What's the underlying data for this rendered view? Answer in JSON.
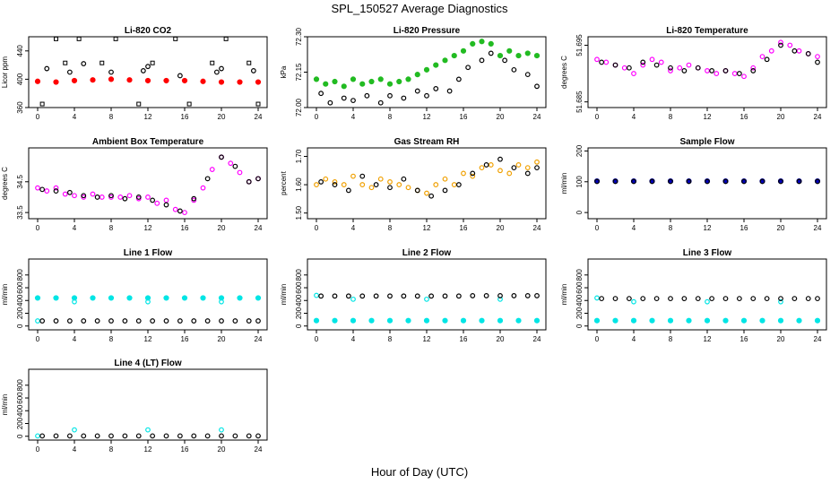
{
  "figure": {
    "title": "SPL_150527  Average Diagnostics",
    "xlabel": "Hour of Day (UTC)"
  },
  "chart_data": [
    {
      "type": "scatter",
      "title": "Li-820 CO2",
      "ylabel": "Licor ppm",
      "xlim": [
        0,
        24
      ],
      "ylim": [
        360,
        460
      ],
      "yticks": [
        360,
        400,
        440
      ],
      "xticks": [
        0,
        4,
        8,
        12,
        16,
        20,
        24
      ],
      "series": [
        {
          "color": "#ff0000",
          "marker": "dot",
          "x": [
            0,
            2,
            4,
            6,
            8,
            10,
            12,
            14,
            16,
            18,
            20,
            22,
            24
          ],
          "y": [
            397,
            396,
            398,
            399,
            400,
            399,
            398,
            398,
            398,
            397,
            396,
            396,
            396
          ]
        },
        {
          "color": "#000000",
          "marker": "square",
          "x": [
            0.5,
            2,
            3,
            4.5,
            7,
            8.5,
            11,
            12.5,
            15,
            16.5,
            19,
            20.5,
            23,
            24
          ],
          "y": [
            365,
            457,
            423,
            457,
            423,
            457,
            365,
            423,
            457,
            365,
            423,
            457,
            423,
            365
          ]
        },
        {
          "color": "#000000",
          "marker": "circle",
          "x": [
            1,
            3.5,
            5,
            8,
            11.5,
            12,
            15.5,
            19.5,
            20,
            23.5
          ],
          "y": [
            415,
            410,
            422,
            410,
            412,
            418,
            405,
            410,
            415,
            412
          ]
        }
      ]
    },
    {
      "type": "scatter",
      "title": "Li-820 Pressure",
      "ylabel": "kPa",
      "xlim": [
        0,
        24
      ],
      "ylim": [
        72.0,
        72.3
      ],
      "yticks": [
        72.0,
        72.15,
        72.3
      ],
      "ytick_labels": [
        "72.00",
        "72.15",
        "72.30"
      ],
      "xticks": [
        0,
        4,
        8,
        12,
        16,
        20,
        24
      ],
      "series": [
        {
          "color": "#22bb22",
          "marker": "dot",
          "x": [
            0,
            1,
            2,
            3,
            4,
            5,
            6,
            7,
            8,
            9,
            10,
            11,
            12,
            13,
            14,
            15,
            16,
            17,
            18,
            19,
            20,
            21,
            22,
            23,
            24
          ],
          "y": [
            72.12,
            72.1,
            72.11,
            72.09,
            72.12,
            72.1,
            72.11,
            72.12,
            72.1,
            72.11,
            72.12,
            72.14,
            72.16,
            72.18,
            72.2,
            72.22,
            72.24,
            72.27,
            72.28,
            72.27,
            72.22,
            72.24,
            72.22,
            72.23,
            72.22
          ]
        },
        {
          "color": "#000000",
          "marker": "circle",
          "x": [
            0.5,
            1.5,
            3,
            4,
            5.5,
            7,
            8,
            9.5,
            11,
            12,
            13,
            14.5,
            15.5,
            16.5,
            18,
            19,
            20.5,
            21.5,
            23,
            24
          ],
          "y": [
            72.06,
            72.02,
            72.04,
            72.03,
            72.05,
            72.02,
            72.05,
            72.04,
            72.07,
            72.05,
            72.08,
            72.07,
            72.12,
            72.17,
            72.2,
            72.23,
            72.2,
            72.16,
            72.14,
            72.09
          ]
        }
      ]
    },
    {
      "type": "scatter",
      "title": "Li-820 Temperature",
      "ylabel": "degrees C",
      "xlim": [
        0,
        24
      ],
      "ylim": [
        51.684,
        51.6965
      ],
      "yticks": [
        51.685,
        51.695
      ],
      "ytick_labels": [
        "51.685",
        "51.695"
      ],
      "xticks": [
        0,
        4,
        8,
        12,
        16,
        20,
        24
      ],
      "series": [
        {
          "color": "#ff00ff",
          "marker": "circle",
          "x": [
            0,
            1,
            2,
            3,
            4,
            5,
            6,
            7,
            8,
            9,
            10,
            11,
            12,
            13,
            14,
            15,
            16,
            17,
            18,
            19,
            20,
            21,
            22,
            23,
            24
          ],
          "y": [
            51.6925,
            51.692,
            51.6915,
            51.691,
            51.69,
            51.6915,
            51.6925,
            51.692,
            51.6905,
            51.691,
            51.6915,
            51.691,
            51.6905,
            51.69,
            51.6905,
            51.69,
            51.6895,
            51.691,
            51.693,
            51.694,
            51.6955,
            51.695,
            51.694,
            51.6935,
            51.693
          ]
        },
        {
          "color": "#000000",
          "marker": "circle",
          "x": [
            0.5,
            2,
            3.5,
            5,
            6.5,
            8,
            9.5,
            11,
            12.5,
            14,
            15.5,
            17,
            18.5,
            20,
            21.5,
            23,
            24
          ],
          "y": [
            51.692,
            51.6915,
            51.691,
            51.692,
            51.6915,
            51.691,
            51.6905,
            51.691,
            51.6905,
            51.6905,
            51.69,
            51.6905,
            51.6925,
            51.695,
            51.694,
            51.6935,
            51.692
          ]
        }
      ]
    },
    {
      "type": "scatter",
      "title": "Ambient Box Temperature",
      "ylabel": "degrees C",
      "xlim": [
        0,
        24
      ],
      "ylim": [
        33.3,
        35.6
      ],
      "yticks": [
        33.5,
        34.5
      ],
      "ytick_labels": [
        "33.5",
        "34.5"
      ],
      "xticks": [
        0,
        4,
        8,
        12,
        16,
        20,
        24
      ],
      "series": [
        {
          "color": "#ff00ff",
          "marker": "circle",
          "x": [
            0,
            1,
            2,
            3,
            4,
            5,
            6,
            7,
            8,
            9,
            10,
            11,
            12,
            13,
            14,
            15,
            16,
            17,
            18,
            19,
            20,
            21,
            22,
            23,
            24
          ],
          "y": [
            34.3,
            34.2,
            34.3,
            34.1,
            34.05,
            34.0,
            34.1,
            34.0,
            34.0,
            34.0,
            34.05,
            33.95,
            34.0,
            33.8,
            33.9,
            33.6,
            33.5,
            33.9,
            34.3,
            34.9,
            35.3,
            35.1,
            34.8,
            34.5,
            34.6
          ]
        },
        {
          "color": "#000000",
          "marker": "circle",
          "x": [
            0.5,
            2,
            3.5,
            5,
            6.5,
            8,
            9.5,
            11,
            12.5,
            14,
            15.5,
            17,
            18.5,
            20,
            21.5,
            23,
            24
          ],
          "y": [
            34.25,
            34.2,
            34.15,
            34.05,
            34.0,
            34.05,
            33.95,
            34.0,
            33.9,
            33.75,
            33.55,
            33.95,
            34.6,
            35.3,
            35.0,
            34.5,
            34.6
          ]
        }
      ]
    },
    {
      "type": "scatter",
      "title": "Gas Stream RH",
      "ylabel": "percent",
      "xlim": [
        0,
        24
      ],
      "ylim": [
        1.48,
        1.73
      ],
      "yticks": [
        1.5,
        1.6,
        1.7
      ],
      "ytick_labels": [
        "1.50",
        "1.60",
        "1.70"
      ],
      "xticks": [
        0,
        4,
        8,
        12,
        16,
        20,
        24
      ],
      "series": [
        {
          "color": "#f0a000",
          "marker": "circle",
          "x": [
            0,
            1,
            2,
            3,
            4,
            5,
            6,
            7,
            8,
            9,
            10,
            11,
            12,
            13,
            14,
            15,
            16,
            17,
            18,
            19,
            20,
            21,
            22,
            23,
            24
          ],
          "y": [
            1.6,
            1.62,
            1.61,
            1.6,
            1.63,
            1.6,
            1.59,
            1.62,
            1.61,
            1.6,
            1.59,
            1.58,
            1.57,
            1.6,
            1.62,
            1.6,
            1.64,
            1.63,
            1.66,
            1.67,
            1.65,
            1.64,
            1.67,
            1.66,
            1.68
          ]
        },
        {
          "color": "#000000",
          "marker": "circle",
          "x": [
            0.5,
            2,
            3.5,
            5,
            6.5,
            8,
            9.5,
            11,
            12.5,
            14,
            15.5,
            17,
            18.5,
            20,
            21.5,
            23,
            24
          ],
          "y": [
            1.61,
            1.6,
            1.58,
            1.63,
            1.6,
            1.59,
            1.62,
            1.58,
            1.56,
            1.58,
            1.6,
            1.64,
            1.67,
            1.69,
            1.66,
            1.64,
            1.66
          ]
        }
      ]
    },
    {
      "type": "scatter",
      "title": "Sample Flow",
      "ylabel": "ml/min",
      "xlim": [
        0,
        24
      ],
      "ylim": [
        -20,
        210
      ],
      "yticks": [
        0,
        100,
        200
      ],
      "xticks": [
        0,
        4,
        8,
        12,
        16,
        20,
        24
      ],
      "series": [
        {
          "color": "#0000bb",
          "marker": "dot",
          "x": [
            0,
            2,
            4,
            6,
            8,
            10,
            12,
            14,
            16,
            18,
            20,
            22,
            24
          ],
          "y": [
            102,
            102,
            102,
            102,
            102,
            102,
            102,
            102,
            102,
            102,
            102,
            102,
            102
          ]
        },
        {
          "color": "#000000",
          "marker": "circle",
          "x": [
            0,
            2,
            4,
            6,
            8,
            10,
            12,
            14,
            16,
            18,
            20,
            22,
            24
          ],
          "y": [
            101,
            101,
            101,
            101,
            101,
            101,
            101,
            101,
            101,
            101,
            101,
            101,
            101
          ]
        }
      ]
    },
    {
      "type": "scatter",
      "title": "Line 1 Flow",
      "ylabel": "ml/min",
      "xlim": [
        0,
        24
      ],
      "ylim": [
        -60,
        1050
      ],
      "yticks": [
        0,
        200,
        400,
        600,
        800
      ],
      "xticks": [
        0,
        4,
        8,
        12,
        16,
        20,
        24
      ],
      "series": [
        {
          "color": "#00e5e5",
          "marker": "dot",
          "x": [
            0,
            2,
            4,
            6,
            8,
            10,
            12,
            14,
            16,
            18,
            20,
            22,
            24
          ],
          "y": [
            440,
            440,
            440,
            440,
            440,
            440,
            440,
            440,
            440,
            440,
            440,
            440,
            440
          ]
        },
        {
          "color": "#00e5e5",
          "marker": "circle",
          "x": [
            0,
            4,
            12,
            20
          ],
          "y": [
            80,
            380,
            380,
            380
          ]
        },
        {
          "color": "#000000",
          "marker": "circle",
          "x": [
            0.5,
            2,
            3.5,
            5,
            6.5,
            8,
            9.5,
            11,
            12.5,
            14,
            15.5,
            17,
            18.5,
            20,
            21.5,
            23,
            24
          ],
          "y": [
            80,
            80,
            80,
            80,
            80,
            80,
            80,
            80,
            80,
            80,
            80,
            80,
            80,
            80,
            80,
            80,
            80
          ]
        }
      ]
    },
    {
      "type": "scatter",
      "title": "Line 2 Flow",
      "ylabel": "ml/min",
      "xlim": [
        0,
        24
      ],
      "ylim": [
        -60,
        1050
      ],
      "yticks": [
        0,
        200,
        400,
        600,
        800
      ],
      "xticks": [
        0,
        4,
        8,
        12,
        16,
        20,
        24
      ],
      "series": [
        {
          "color": "#00e5e5",
          "marker": "dot",
          "x": [
            0,
            2,
            4,
            6,
            8,
            10,
            12,
            14,
            16,
            18,
            20,
            22,
            24
          ],
          "y": [
            85,
            85,
            85,
            85,
            85,
            85,
            85,
            85,
            85,
            85,
            85,
            85,
            85
          ]
        },
        {
          "color": "#00e5e5",
          "marker": "circle",
          "x": [
            0,
            4,
            12,
            20
          ],
          "y": [
            480,
            420,
            420,
            420
          ]
        },
        {
          "color": "#000000",
          "marker": "circle",
          "x": [
            0.5,
            2,
            3.5,
            5,
            6.5,
            8,
            9.5,
            11,
            12.5,
            14,
            15.5,
            17,
            18.5,
            20,
            21.5,
            23,
            24
          ],
          "y": [
            470,
            470,
            470,
            470,
            470,
            470,
            470,
            470,
            470,
            470,
            470,
            475,
            475,
            475,
            475,
            475,
            475
          ]
        }
      ]
    },
    {
      "type": "scatter",
      "title": "Line 3 Flow",
      "ylabel": "ml/min",
      "xlim": [
        0,
        24
      ],
      "ylim": [
        -60,
        1050
      ],
      "yticks": [
        0,
        200,
        400,
        600,
        800
      ],
      "xticks": [
        0,
        4,
        8,
        12,
        16,
        20,
        24
      ],
      "series": [
        {
          "color": "#00e5e5",
          "marker": "dot",
          "x": [
            0,
            2,
            4,
            6,
            8,
            10,
            12,
            14,
            16,
            18,
            20,
            22,
            24
          ],
          "y": [
            85,
            85,
            85,
            85,
            85,
            85,
            85,
            85,
            85,
            85,
            85,
            85,
            85
          ]
        },
        {
          "color": "#00e5e5",
          "marker": "circle",
          "x": [
            0,
            4,
            12,
            20
          ],
          "y": [
            440,
            380,
            380,
            380
          ]
        },
        {
          "color": "#000000",
          "marker": "circle",
          "x": [
            0.5,
            2,
            3.5,
            5,
            6.5,
            8,
            9.5,
            11,
            12.5,
            14,
            15.5,
            17,
            18.5,
            20,
            21.5,
            23,
            24
          ],
          "y": [
            430,
            430,
            430,
            430,
            430,
            430,
            430,
            430,
            430,
            430,
            430,
            430,
            430,
            430,
            430,
            430,
            430
          ]
        }
      ]
    },
    {
      "type": "scatter",
      "title": "Line 4 (LT) Flow",
      "ylabel": "ml/min",
      "xlim": [
        0,
        24
      ],
      "ylim": [
        -60,
        1050
      ],
      "yticks": [
        0,
        200,
        400,
        600,
        800
      ],
      "xticks": [
        0,
        4,
        8,
        12,
        16,
        20,
        24
      ],
      "series": [
        {
          "color": "#00e5e5",
          "marker": "circle",
          "x": [
            0,
            4,
            12,
            20
          ],
          "y": [
            5,
            100,
            100,
            100
          ]
        },
        {
          "color": "#000000",
          "marker": "circle",
          "x": [
            0.5,
            2,
            3.5,
            5,
            6.5,
            8,
            9.5,
            11,
            12.5,
            14,
            15.5,
            17,
            18.5,
            20,
            21.5,
            23,
            24
          ],
          "y": [
            5,
            5,
            5,
            5,
            5,
            5,
            5,
            5,
            5,
            5,
            5,
            5,
            5,
            5,
            5,
            5,
            5
          ]
        }
      ]
    }
  ]
}
